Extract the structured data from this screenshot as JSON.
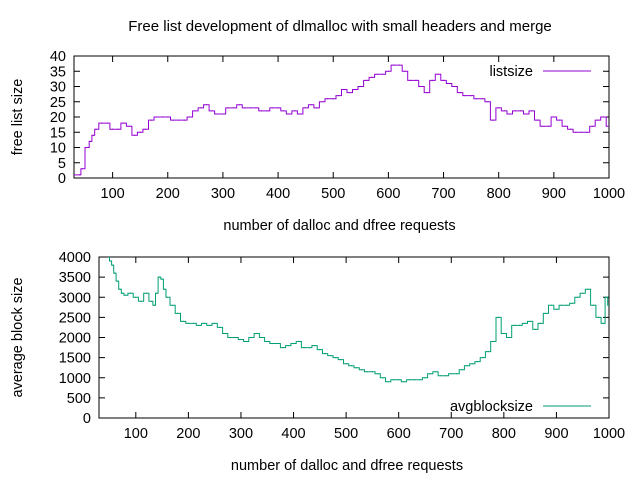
{
  "title": "Free list development of dlmalloc with small headers and merge",
  "chart_data": [
    {
      "type": "line",
      "xlabel": "number of dalloc and dfree requests",
      "ylabel": "free list size",
      "xlim": [
        30,
        1000
      ],
      "ylim": [
        0,
        40
      ],
      "xticks": [
        100,
        200,
        300,
        400,
        500,
        600,
        700,
        800,
        900,
        1000
      ],
      "yticks": [
        0,
        5,
        10,
        15,
        20,
        25,
        30,
        35,
        40
      ],
      "grid": false,
      "legend_position": "top-right",
      "series": [
        {
          "name": "listsize",
          "color": "#9400d3",
          "x": [
            30,
            40,
            45,
            55,
            60,
            65,
            70,
            80,
            90,
            100,
            110,
            120,
            130,
            140,
            150,
            160,
            170,
            180,
            190,
            200,
            210,
            220,
            230,
            240,
            250,
            260,
            270,
            280,
            290,
            300,
            310,
            320,
            330,
            340,
            350,
            360,
            370,
            380,
            390,
            400,
            410,
            420,
            430,
            440,
            450,
            460,
            470,
            480,
            490,
            500,
            510,
            520,
            530,
            540,
            550,
            560,
            570,
            580,
            590,
            600,
            610,
            620,
            630,
            640,
            650,
            660,
            670,
            680,
            690,
            700,
            710,
            720,
            730,
            740,
            750,
            760,
            770,
            780,
            790,
            800,
            810,
            820,
            830,
            840,
            850,
            860,
            870,
            880,
            890,
            900,
            910,
            920,
            930,
            940,
            950,
            960,
            970,
            980,
            990,
            1000
          ],
          "y": [
            1,
            1,
            3,
            10,
            12,
            14,
            16,
            18,
            18,
            16,
            16,
            18,
            17,
            14,
            15,
            16,
            19,
            20,
            20,
            20,
            19,
            19,
            19,
            20,
            22,
            23,
            24,
            22,
            21,
            21,
            23,
            23,
            24,
            23,
            23,
            23,
            22,
            22,
            23,
            23,
            22,
            21,
            22,
            21,
            23,
            24,
            23,
            25,
            26,
            26,
            27,
            29,
            28,
            29,
            30,
            32,
            33,
            34,
            34,
            35,
            37,
            37,
            35,
            32,
            32,
            30,
            28,
            32,
            34,
            32,
            31,
            30,
            28,
            27,
            27,
            26,
            26,
            25,
            19,
            23,
            22,
            21,
            22,
            22,
            21,
            22,
            19,
            17,
            17,
            20,
            19,
            17,
            16,
            15,
            15,
            15,
            17,
            19,
            20,
            17
          ]
        }
      ]
    },
    {
      "type": "line",
      "xlabel": "number of dalloc and dfree requests",
      "ylabel": "average block size",
      "xlim": [
        30,
        1000
      ],
      "ylim": [
        0,
        4000
      ],
      "xticks": [
        100,
        200,
        300,
        400,
        500,
        600,
        700,
        800,
        900,
        1000
      ],
      "yticks": [
        0,
        500,
        1000,
        1500,
        2000,
        2500,
        3000,
        3500,
        4000
      ],
      "grid": false,
      "legend_position": "bottom-right",
      "series": [
        {
          "name": "avgblocksize",
          "color": "#009e73",
          "x": [
            48,
            52,
            56,
            60,
            65,
            70,
            75,
            80,
            90,
            100,
            110,
            120,
            130,
            135,
            140,
            145,
            150,
            155,
            160,
            170,
            180,
            190,
            200,
            210,
            220,
            230,
            240,
            250,
            260,
            270,
            280,
            290,
            300,
            310,
            320,
            330,
            340,
            350,
            360,
            370,
            380,
            390,
            400,
            410,
            420,
            430,
            440,
            450,
            460,
            470,
            480,
            490,
            500,
            510,
            520,
            530,
            540,
            550,
            560,
            570,
            580,
            590,
            600,
            610,
            620,
            630,
            640,
            650,
            660,
            670,
            680,
            690,
            700,
            710,
            720,
            730,
            740,
            750,
            760,
            770,
            780,
            790,
            800,
            810,
            820,
            830,
            840,
            850,
            860,
            870,
            880,
            890,
            900,
            910,
            920,
            930,
            940,
            950,
            960,
            970,
            980,
            990,
            995,
            1000
          ],
          "y": [
            4000,
            3900,
            3800,
            3600,
            3400,
            3200,
            3100,
            3050,
            3100,
            3000,
            2900,
            3100,
            2900,
            2800,
            3100,
            3500,
            3450,
            3200,
            3000,
            2800,
            2600,
            2400,
            2350,
            2350,
            2300,
            2350,
            2300,
            2350,
            2250,
            2100,
            2000,
            2000,
            1950,
            1900,
            2000,
            2100,
            2000,
            1900,
            1850,
            1850,
            1750,
            1800,
            1850,
            1900,
            1750,
            1750,
            1800,
            1700,
            1600,
            1550,
            1500,
            1450,
            1350,
            1300,
            1250,
            1200,
            1150,
            1150,
            1100,
            1000,
            900,
            950,
            950,
            900,
            950,
            950,
            950,
            1000,
            1100,
            1150,
            1050,
            1050,
            1100,
            1100,
            1200,
            1300,
            1350,
            1400,
            1500,
            1650,
            1900,
            2500,
            2100,
            2000,
            2300,
            2300,
            2350,
            2400,
            2200,
            2350,
            2600,
            2800,
            2700,
            2800,
            2800,
            2850,
            3000,
            3100,
            3200,
            2800,
            2500,
            2350,
            3000,
            2800
          ]
        }
      ]
    }
  ]
}
